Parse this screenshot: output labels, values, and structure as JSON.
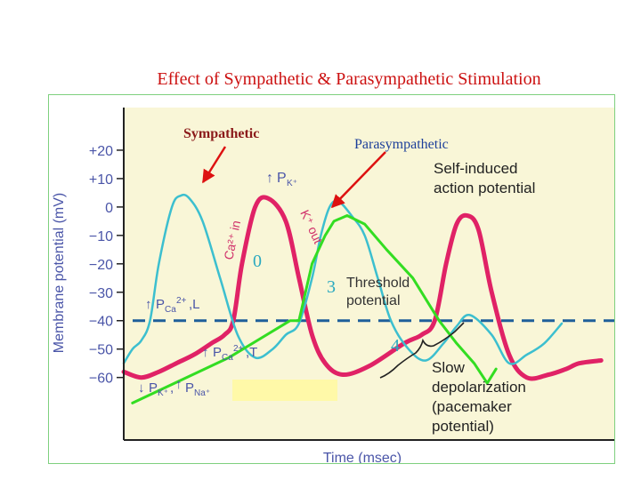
{
  "slide": {
    "title": "Effect of Sympathetic & Parasympathetic Stimulation"
  },
  "colors": {
    "title": "#cc1111",
    "panel_background": "#f9f6d7",
    "axis": "#222222",
    "label_blue": "#4a55a8",
    "pacemaker_trace": "#e02266",
    "sympathetic_trace": "#3cbfcf",
    "parasympathetic_trace": "#33dd22",
    "threshold_line": "#1f5f9a",
    "arrow": "#dd1111",
    "highlight_box": "#fff9a8",
    "phase_number": "#2aa9c0"
  },
  "chart_data": {
    "type": "line",
    "xlabel": "Time (msec)",
    "ylabel": "Membrane potential (mV)",
    "ylim": [
      -82,
      35
    ],
    "xlim": [
      0,
      560
    ],
    "yticks": [
      20,
      10,
      0,
      -10,
      -20,
      -30,
      -40,
      -50,
      -60
    ],
    "ytick_labels": [
      "+20",
      "+10",
      "0",
      "−10",
      "−20",
      "−30",
      "−40",
      "−50",
      "−60"
    ],
    "threshold_mv": -40,
    "series": [
      {
        "key": "pacemaker",
        "x": [
          0,
          20,
          40,
          60,
          80,
          100,
          115,
          125,
          135,
          150,
          165,
          185,
          200,
          215,
          230,
          250,
          280,
          320,
          340,
          355,
          368,
          380,
          392,
          405,
          420,
          440,
          460,
          485,
          505,
          520,
          545
        ],
        "y": [
          -58,
          -60,
          -58,
          -55,
          -52,
          -48,
          -45,
          -40,
          -20,
          0,
          3,
          -5,
          -25,
          -45,
          -55,
          -59,
          -56,
          -48,
          -45,
          -40,
          -20,
          -6,
          -3,
          -8,
          -30,
          -52,
          -60,
          -59,
          -57,
          -55,
          -54
        ]
      },
      {
        "key": "sympathetic",
        "x": [
          0,
          10,
          20,
          30,
          40,
          55,
          65,
          75,
          90,
          110,
          130,
          150,
          170,
          185,
          200,
          215,
          225,
          235,
          245,
          260,
          275,
          290,
          305,
          325,
          345,
          365,
          380,
          395,
          420,
          440,
          460,
          480,
          500
        ],
        "y": [
          -55,
          -50,
          -47,
          -40,
          -20,
          0,
          4,
          3,
          -5,
          -25,
          -45,
          -53,
          -50,
          -45,
          -41,
          -25,
          -10,
          0,
          2,
          -3,
          -10,
          -25,
          -40,
          -50,
          -54,
          -48,
          -42,
          -38,
          -45,
          -55,
          -52,
          -48,
          -41
        ]
      },
      {
        "key": "parasympathetic",
        "x": [
          10,
          120,
          190,
          200,
          215,
          230,
          240,
          255,
          275,
          300,
          330,
          360,
          380,
          400,
          415,
          425
        ],
        "y": [
          -69,
          -53,
          -40,
          -40,
          -20,
          -10,
          -5,
          -3,
          -6,
          -15,
          -25,
          -40,
          -48,
          -55,
          -62,
          -57
        ]
      }
    ],
    "annotations": {
      "sympathetic": "Sympathetic",
      "parasympathetic": "Parasympathetic",
      "self_induced_1": "Self-induced",
      "self_induced_2": "action potential",
      "threshold_1": "Threshold",
      "threshold_2": "potential",
      "slow_1": "Slow",
      "slow_2": "depolarization",
      "slow_3": "(pacemaker",
      "slow_4": "potential)",
      "pk_up": "P",
      "pk_up_sub": "K⁺",
      "ca_in": "Ca²⁺ in",
      "k_out": "K⁺ out",
      "pca_l": "P",
      "pca_l_sub": "Ca",
      "pca_l_sup": "2+",
      "pca_l_tail": ",L",
      "pca_t": "P",
      "pca_t_sub": "Ca",
      "pca_t_sup": "2+",
      "pca_t_tail": ",T",
      "pk_pna": "P",
      "pk_pna_sub": "K⁺",
      "pk_pna_mid": ",",
      "pk_pna_b": "P",
      "pk_pna_b_sub": "Na⁺",
      "phase_0": "0",
      "phase_3": "3",
      "phase_4": "4"
    }
  }
}
